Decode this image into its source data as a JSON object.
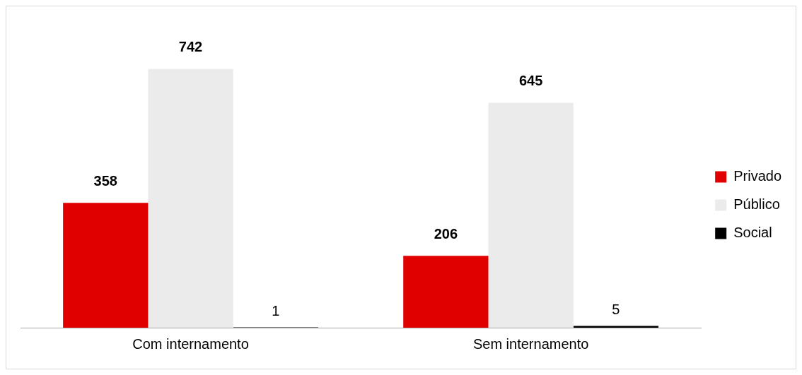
{
  "chart_data": {
    "type": "bar",
    "categories": [
      "Com internamento",
      "Sem internamento"
    ],
    "series": [
      {
        "name": "Privado",
        "color": "#e00000",
        "values": [
          358,
          206
        ]
      },
      {
        "name": "Público",
        "color": "#ebebeb",
        "values": [
          742,
          645
        ]
      },
      {
        "name": "Social",
        "color": "#000000",
        "values": [
          1,
          5
        ]
      }
    ],
    "data_labels": true,
    "legend": "right",
    "grid": false
  }
}
